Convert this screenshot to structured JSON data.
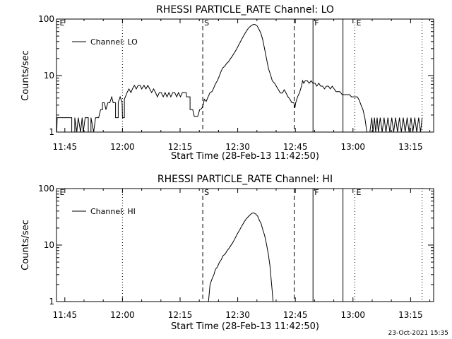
{
  "footer": {
    "timestamp": "23-Oct-2021 15:35"
  },
  "chart_data": [
    {
      "type": "line",
      "title": "RHESSI PARTICLE_RATE Channel: LO",
      "xlabel": "Start Time (28-Feb-13 11:42:50)",
      "ylabel": "Counts/sec",
      "yscale": "log",
      "ylim": [
        1,
        100
      ],
      "xlim_minutes": [
        102.83,
        201.0
      ],
      "xticks": [
        {
          "m": 105,
          "label": "11:45"
        },
        {
          "m": 120,
          "label": "12:00"
        },
        {
          "m": 135,
          "label": "12:15"
        },
        {
          "m": 150,
          "label": "12:30"
        },
        {
          "m": 165,
          "label": "12:45"
        },
        {
          "m": 180,
          "label": "13:00"
        },
        {
          "m": 195,
          "label": "13:15"
        }
      ],
      "yticks": [
        {
          "v": 1,
          "label": "1"
        },
        {
          "v": 10,
          "label": "10"
        },
        {
          "v": 100,
          "label": "100"
        }
      ],
      "legend": {
        "position": "top-left",
        "label": "Channel: LO"
      },
      "markers": [
        {
          "m": 103.3,
          "label": "E",
          "style": "dotted",
          "labelOnly": true
        },
        {
          "m": 120.0,
          "label": "",
          "style": "dotted"
        },
        {
          "m": 140.9,
          "label": "S",
          "style": "dashed"
        },
        {
          "m": 164.7,
          "label": "",
          "style": "dashed"
        },
        {
          "m": 169.6,
          "label": "F",
          "style": "solid"
        },
        {
          "m": 177.4,
          "label": "",
          "style": "solid"
        },
        {
          "m": 180.5,
          "label": "E",
          "style": "dotted"
        },
        {
          "m": 198.0,
          "label": "",
          "style": "dotted"
        }
      ],
      "series": [
        {
          "name": "Channel: LO",
          "points": [
            [
              102.9,
              1
            ],
            [
              103.0,
              1.8
            ],
            [
              106.8,
              1.8
            ],
            [
              106.8,
              1
            ],
            [
              107.6,
              1
            ],
            [
              107.6,
              1.8
            ],
            [
              108.1,
              1
            ],
            [
              108.5,
              1.8
            ],
            [
              109.1,
              1
            ],
            [
              109.5,
              1.8
            ],
            [
              109.8,
              1
            ],
            [
              110.3,
              1.8
            ],
            [
              111.1,
              1.8
            ],
            [
              111.1,
              1
            ],
            [
              111.8,
              1
            ],
            [
              111.8,
              1.8
            ],
            [
              112.5,
              1
            ],
            [
              113.0,
              1.8
            ],
            [
              113.8,
              1.8
            ],
            [
              114.3,
              2.5
            ],
            [
              114.8,
              2.5
            ],
            [
              114.8,
              3.3
            ],
            [
              115.3,
              3.3
            ],
            [
              115.7,
              2.5
            ],
            [
              116.2,
              3.3
            ],
            [
              116.7,
              3.3
            ],
            [
              117.2,
              4.2
            ],
            [
              117.6,
              3.3
            ],
            [
              118.2,
              3.3
            ],
            [
              118.2,
              1.8
            ],
            [
              118.9,
              1.8
            ],
            [
              118.9,
              3.3
            ],
            [
              119.4,
              4.2
            ],
            [
              119.9,
              3.3
            ],
            [
              120.0,
              1.8
            ],
            [
              120.5,
              1.8
            ],
            [
              120.5,
              3.8
            ],
            [
              121.2,
              5.0
            ],
            [
              121.7,
              5.8
            ],
            [
              122.2,
              5.0
            ],
            [
              122.6,
              5.8
            ],
            [
              123.1,
              6.7
            ],
            [
              123.6,
              5.8
            ],
            [
              124.1,
              6.7
            ],
            [
              124.6,
              6.7
            ],
            [
              125.0,
              5.8
            ],
            [
              125.6,
              6.7
            ],
            [
              126.1,
              5.8
            ],
            [
              126.6,
              6.7
            ],
            [
              127.1,
              5.8
            ],
            [
              127.6,
              5.0
            ],
            [
              128.1,
              5.8
            ],
            [
              128.6,
              5.0
            ],
            [
              129.1,
              4.2
            ],
            [
              129.6,
              5.0
            ],
            [
              130.1,
              5.0
            ],
            [
              130.6,
              4.2
            ],
            [
              131.1,
              5.0
            ],
            [
              131.6,
              4.2
            ],
            [
              132.1,
              5.0
            ],
            [
              132.6,
              4.2
            ],
            [
              133.1,
              5.0
            ],
            [
              133.6,
              5.0
            ],
            [
              134.1,
              4.2
            ],
            [
              134.6,
              5.0
            ],
            [
              135.1,
              4.2
            ],
            [
              135.6,
              5.0
            ],
            [
              136.1,
              5.0
            ],
            [
              136.6,
              5.0
            ],
            [
              136.7,
              4.2
            ],
            [
              137.6,
              4.2
            ],
            [
              137.6,
              2.5
            ],
            [
              138.3,
              2.5
            ],
            [
              138.7,
              1.9
            ],
            [
              139.6,
              1.9
            ],
            [
              140.1,
              2.5
            ],
            [
              140.6,
              2.6
            ],
            [
              141.0,
              3.0
            ],
            [
              141.3,
              3.8
            ],
            [
              141.8,
              3.5
            ],
            [
              142.3,
              4.2
            ],
            [
              142.8,
              5.0
            ],
            [
              143.3,
              5.2
            ],
            [
              143.7,
              5.9
            ],
            [
              144.2,
              7.1
            ],
            [
              144.7,
              8.1
            ],
            [
              145.2,
              9.8
            ],
            [
              145.6,
              11.5
            ],
            [
              146.1,
              13.7
            ],
            [
              146.6,
              14.6
            ],
            [
              147.1,
              16.3
            ],
            [
              147.6,
              17.6
            ],
            [
              148.1,
              19.8
            ],
            [
              148.6,
              22.2
            ],
            [
              149.1,
              25.1
            ],
            [
              149.6,
              28.4
            ],
            [
              150.1,
              33.1
            ],
            [
              150.6,
              38.2
            ],
            [
              151.1,
              44.8
            ],
            [
              151.6,
              51.6
            ],
            [
              152.1,
              58.7
            ],
            [
              152.6,
              66.2
            ],
            [
              153.1,
              72.5
            ],
            [
              153.6,
              77.3
            ],
            [
              154.1,
              80.6
            ],
            [
              154.6,
              79.7
            ],
            [
              155.1,
              75.2
            ],
            [
              155.5,
              66.6
            ],
            [
              156.0,
              56.9
            ],
            [
              156.5,
              43.7
            ],
            [
              157.0,
              29.4
            ],
            [
              157.5,
              19.8
            ],
            [
              158.0,
              13.3
            ],
            [
              158.5,
              10.6
            ],
            [
              159.0,
              8.1
            ],
            [
              159.6,
              7.3
            ],
            [
              160.1,
              6.4
            ],
            [
              160.6,
              5.6
            ],
            [
              161.1,
              4.9
            ],
            [
              161.6,
              4.9
            ],
            [
              162.1,
              5.6
            ],
            [
              162.6,
              4.9
            ],
            [
              163.1,
              4.2
            ],
            [
              163.6,
              3.8
            ],
            [
              164.1,
              3.3
            ],
            [
              164.6,
              3.3
            ],
            [
              164.9,
              2.7
            ],
            [
              165.1,
              3.3
            ],
            [
              165.6,
              4.2
            ],
            [
              166.1,
              5.0
            ],
            [
              166.6,
              6.5
            ],
            [
              166.9,
              8.1
            ],
            [
              167.2,
              7.3
            ],
            [
              167.6,
              8.1
            ],
            [
              168.1,
              8.1
            ],
            [
              168.6,
              7.3
            ],
            [
              169.1,
              8.1
            ],
            [
              169.6,
              7.3
            ],
            [
              170.1,
              7.3
            ],
            [
              170.6,
              6.5
            ],
            [
              171.1,
              7.3
            ],
            [
              171.6,
              6.5
            ],
            [
              172.1,
              6.5
            ],
            [
              172.6,
              5.8
            ],
            [
              173.1,
              6.5
            ],
            [
              173.6,
              6.5
            ],
            [
              174.1,
              5.8
            ],
            [
              174.6,
              6.5
            ],
            [
              175.1,
              5.8
            ],
            [
              175.6,
              5.2
            ],
            [
              176.1,
              5.2
            ],
            [
              176.6,
              5.2
            ],
            [
              177.2,
              4.6
            ],
            [
              177.7,
              4.6
            ],
            [
              178.2,
              4.6
            ],
            [
              178.7,
              4.6
            ],
            [
              179.1,
              4.6
            ],
            [
              179.6,
              4.2
            ],
            [
              180.0,
              4.2
            ],
            [
              180.6,
              4.2
            ],
            [
              181.1,
              4.2
            ],
            [
              181.6,
              3.7
            ],
            [
              182.1,
              3.0
            ],
            [
              182.6,
              2.5
            ],
            [
              183.1,
              1.8
            ],
            [
              183.6,
              1.0
            ],
            [
              184.4,
              1
            ],
            [
              184.9,
              1.8
            ],
            [
              185.2,
              1
            ],
            [
              185.6,
              1.8
            ],
            [
              185.9,
              1
            ],
            [
              186.3,
              1.8
            ],
            [
              186.6,
              1
            ],
            [
              187.1,
              1.8
            ],
            [
              187.6,
              1
            ],
            [
              188.1,
              1.8
            ],
            [
              188.6,
              1
            ],
            [
              189.1,
              1.8
            ],
            [
              189.6,
              1
            ],
            [
              190.1,
              1.8
            ],
            [
              190.6,
              1
            ],
            [
              191.1,
              1.8
            ],
            [
              191.6,
              1
            ],
            [
              192.1,
              1.8
            ],
            [
              192.6,
              1
            ],
            [
              193.1,
              1.8
            ],
            [
              193.6,
              1
            ],
            [
              194.1,
              1.8
            ],
            [
              194.6,
              1
            ],
            [
              195.1,
              1.8
            ],
            [
              195.6,
              1
            ],
            [
              196.1,
              1.8
            ],
            [
              196.6,
              1
            ],
            [
              197.1,
              1.8
            ],
            [
              197.6,
              1
            ],
            [
              198.0,
              1.8
            ]
          ]
        }
      ]
    },
    {
      "type": "line",
      "title": "RHESSI PARTICLE_RATE Channel: HI",
      "xlabel": "Start Time (28-Feb-13 11:42:50)",
      "ylabel": "Counts/sec",
      "yscale": "log",
      "ylim": [
        1,
        100
      ],
      "xlim_minutes": [
        102.83,
        201.0
      ],
      "xticks": [
        {
          "m": 105,
          "label": "11:45"
        },
        {
          "m": 120,
          "label": "12:00"
        },
        {
          "m": 135,
          "label": "12:15"
        },
        {
          "m": 150,
          "label": "12:30"
        },
        {
          "m": 165,
          "label": "12:45"
        },
        {
          "m": 180,
          "label": "13:00"
        },
        {
          "m": 195,
          "label": "13:15"
        }
      ],
      "yticks": [
        {
          "v": 1,
          "label": "1"
        },
        {
          "v": 10,
          "label": "10"
        },
        {
          "v": 100,
          "label": "100"
        }
      ],
      "legend": {
        "position": "top-left",
        "label": "Channel: HI"
      },
      "markers": [
        {
          "m": 103.3,
          "label": "E",
          "style": "dotted",
          "labelOnly": true
        },
        {
          "m": 120.0,
          "label": "",
          "style": "dotted"
        },
        {
          "m": 140.9,
          "label": "S",
          "style": "dashed"
        },
        {
          "m": 164.7,
          "label": "",
          "style": "dashed"
        },
        {
          "m": 169.6,
          "label": "F",
          "style": "solid"
        },
        {
          "m": 177.4,
          "label": "",
          "style": "solid"
        },
        {
          "m": 180.5,
          "label": "E",
          "style": "dotted"
        },
        {
          "m": 198.0,
          "label": "",
          "style": "dotted"
        }
      ],
      "series": [
        {
          "name": "Channel: HI",
          "points": [
            [
              142.4,
              1
            ],
            [
              142.8,
              2.0
            ],
            [
              143.3,
              2.5
            ],
            [
              143.8,
              3.0
            ],
            [
              144.2,
              3.7
            ],
            [
              144.7,
              4.1
            ],
            [
              145.2,
              4.9
            ],
            [
              145.7,
              5.5
            ],
            [
              146.2,
              6.5
            ],
            [
              146.7,
              6.9
            ],
            [
              147.2,
              7.9
            ],
            [
              147.7,
              8.7
            ],
            [
              148.2,
              9.8
            ],
            [
              148.7,
              11.0
            ],
            [
              149.2,
              12.7
            ],
            [
              149.7,
              14.9
            ],
            [
              150.2,
              17.2
            ],
            [
              150.7,
              19.6
            ],
            [
              151.2,
              22.5
            ],
            [
              151.7,
              25.7
            ],
            [
              152.2,
              28.9
            ],
            [
              152.7,
              31.6
            ],
            [
              153.2,
              34.1
            ],
            [
              153.7,
              36.5
            ],
            [
              154.2,
              37.2
            ],
            [
              154.7,
              35.4
            ],
            [
              155.2,
              32.4
            ],
            [
              155.6,
              27.9
            ],
            [
              156.1,
              23.8
            ],
            [
              156.5,
              19.1
            ],
            [
              157.0,
              14.8
            ],
            [
              157.5,
              10.3
            ],
            [
              158.0,
              6.7
            ],
            [
              158.4,
              4.2
            ],
            [
              158.7,
              2.5
            ],
            [
              159.0,
              1.5
            ],
            [
              159.2,
              1
            ]
          ]
        }
      ]
    }
  ]
}
